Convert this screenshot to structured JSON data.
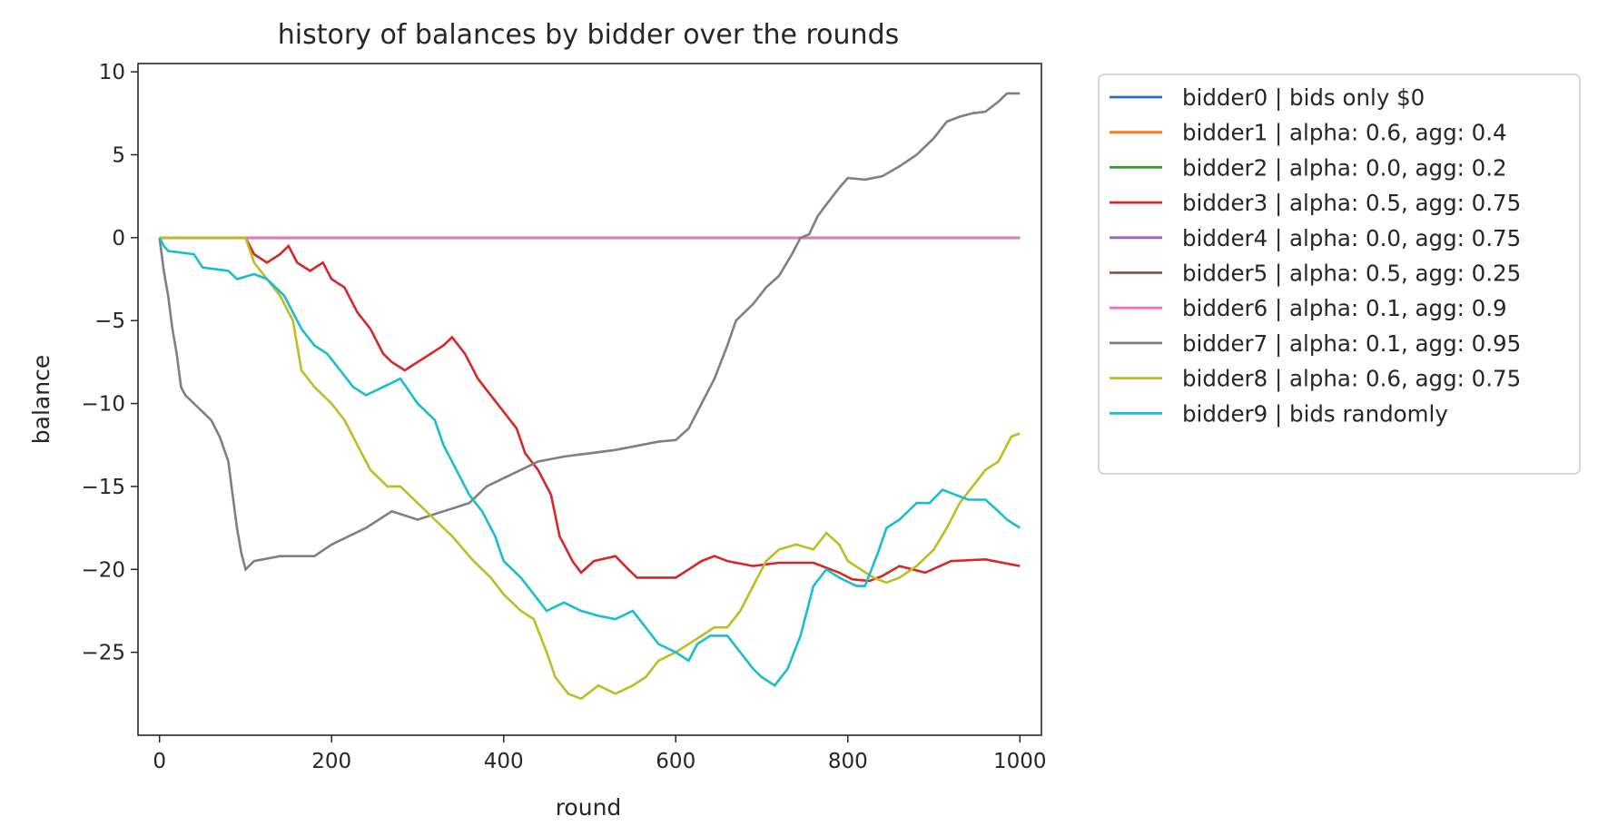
{
  "chart_data": {
    "type": "line",
    "title": "history of balances by bidder over the rounds",
    "xlabel": "round",
    "ylabel": "balance",
    "xlim": [
      -25,
      1025
    ],
    "ylim": [
      -30,
      10.5
    ],
    "x_ticks": [
      0,
      200,
      400,
      600,
      800,
      1000
    ],
    "x_tick_labels": [
      "0",
      "200",
      "400",
      "600",
      "800",
      "1000"
    ],
    "y_ticks": [
      10,
      5,
      0,
      -5,
      -10,
      -15,
      -20,
      -25
    ],
    "y_tick_labels": [
      "10",
      "5",
      "0",
      "−5",
      "−10",
      "−15",
      "−20",
      "−25"
    ],
    "grid": false,
    "legend_position": "outside-right",
    "series": [
      {
        "name": "bidder0 | bids only $0",
        "color": "#1f77b4",
        "points": [
          [
            0,
            0
          ],
          [
            1000,
            0
          ]
        ]
      },
      {
        "name": "bidder1 | alpha: 0.6, agg: 0.4",
        "color": "#ff7f0e",
        "points": [
          [
            0,
            0
          ],
          [
            1000,
            0
          ]
        ]
      },
      {
        "name": "bidder2 | alpha: 0.0, agg: 0.2",
        "color": "#2ca02c",
        "points": [
          [
            0,
            0
          ],
          [
            1000,
            0
          ]
        ]
      },
      {
        "name": "bidder3 | alpha: 0.5, agg: 0.75",
        "color": "#d62728",
        "points": [
          [
            0,
            0
          ],
          [
            100,
            0
          ],
          [
            110,
            -1
          ],
          [
            125,
            -1.5
          ],
          [
            140,
            -1
          ],
          [
            150,
            -0.5
          ],
          [
            160,
            -1.5
          ],
          [
            175,
            -2
          ],
          [
            190,
            -1.5
          ],
          [
            200,
            -2.5
          ],
          [
            215,
            -3
          ],
          [
            230,
            -4.5
          ],
          [
            245,
            -5.5
          ],
          [
            260,
            -7
          ],
          [
            270,
            -7.5
          ],
          [
            285,
            -8
          ],
          [
            300,
            -7.5
          ],
          [
            315,
            -7
          ],
          [
            330,
            -6.5
          ],
          [
            340,
            -6
          ],
          [
            355,
            -7
          ],
          [
            370,
            -8.5
          ],
          [
            385,
            -9.5
          ],
          [
            400,
            -10.5
          ],
          [
            415,
            -11.5
          ],
          [
            425,
            -13
          ],
          [
            440,
            -14
          ],
          [
            455,
            -15.5
          ],
          [
            465,
            -18
          ],
          [
            480,
            -19.5
          ],
          [
            490,
            -20.2
          ],
          [
            505,
            -19.5
          ],
          [
            530,
            -19.2
          ],
          [
            545,
            -20
          ],
          [
            555,
            -20.5
          ],
          [
            600,
            -20.5
          ],
          [
            615,
            -20
          ],
          [
            630,
            -19.5
          ],
          [
            645,
            -19.2
          ],
          [
            660,
            -19.5
          ],
          [
            690,
            -19.8
          ],
          [
            720,
            -19.6
          ],
          [
            760,
            -19.6
          ],
          [
            790,
            -20.2
          ],
          [
            805,
            -20.6
          ],
          [
            825,
            -20.7
          ],
          [
            840,
            -20.4
          ],
          [
            860,
            -19.8
          ],
          [
            890,
            -20.2
          ],
          [
            920,
            -19.5
          ],
          [
            960,
            -19.4
          ],
          [
            1000,
            -19.8
          ]
        ]
      },
      {
        "name": "bidder4 | alpha: 0.0, agg: 0.75",
        "color": "#9467bd",
        "points": [
          [
            0,
            0
          ],
          [
            1000,
            0
          ]
        ]
      },
      {
        "name": "bidder5 | alpha: 0.5, agg: 0.25",
        "color": "#8c564b",
        "points": [
          [
            0,
            0
          ],
          [
            1000,
            0
          ]
        ]
      },
      {
        "name": "bidder6 | alpha: 0.1, agg: 0.9",
        "color": "#e377c2",
        "points": [
          [
            0,
            0
          ],
          [
            1000,
            0
          ]
        ]
      },
      {
        "name": "bidder7 | alpha: 0.1, agg: 0.95",
        "color": "#7f7f7f",
        "points": [
          [
            0,
            0
          ],
          [
            5,
            -2
          ],
          [
            10,
            -3.5
          ],
          [
            15,
            -5.5
          ],
          [
            20,
            -7
          ],
          [
            25,
            -9
          ],
          [
            30,
            -9.5
          ],
          [
            40,
            -10
          ],
          [
            50,
            -10.5
          ],
          [
            60,
            -11
          ],
          [
            70,
            -12
          ],
          [
            80,
            -13.5
          ],
          [
            85,
            -15.5
          ],
          [
            90,
            -17.5
          ],
          [
            95,
            -19
          ],
          [
            100,
            -20
          ],
          [
            110,
            -19.5
          ],
          [
            140,
            -19.2
          ],
          [
            180,
            -19.2
          ],
          [
            200,
            -18.5
          ],
          [
            220,
            -18
          ],
          [
            240,
            -17.5
          ],
          [
            270,
            -16.5
          ],
          [
            300,
            -17
          ],
          [
            330,
            -16.5
          ],
          [
            360,
            -16
          ],
          [
            380,
            -15
          ],
          [
            400,
            -14.5
          ],
          [
            420,
            -14
          ],
          [
            440,
            -13.5
          ],
          [
            470,
            -13.2
          ],
          [
            500,
            -13
          ],
          [
            530,
            -12.8
          ],
          [
            560,
            -12.5
          ],
          [
            580,
            -12.3
          ],
          [
            600,
            -12.2
          ],
          [
            615,
            -11.5
          ],
          [
            630,
            -10
          ],
          [
            645,
            -8.5
          ],
          [
            660,
            -6.5
          ],
          [
            670,
            -5
          ],
          [
            690,
            -4
          ],
          [
            705,
            -3
          ],
          [
            720,
            -2.3
          ],
          [
            735,
            -1
          ],
          [
            745,
            0
          ],
          [
            755,
            0.2
          ],
          [
            765,
            1.3
          ],
          [
            775,
            2
          ],
          [
            790,
            3
          ],
          [
            800,
            3.6
          ],
          [
            820,
            3.5
          ],
          [
            840,
            3.7
          ],
          [
            860,
            4.3
          ],
          [
            880,
            5
          ],
          [
            900,
            6
          ],
          [
            915,
            7
          ],
          [
            930,
            7.3
          ],
          [
            945,
            7.5
          ],
          [
            960,
            7.6
          ],
          [
            975,
            8.2
          ],
          [
            985,
            8.7
          ],
          [
            1000,
            8.7
          ]
        ]
      },
      {
        "name": "bidder8 | alpha: 0.6, agg: 0.75",
        "color": "#bcbd22",
        "points": [
          [
            0,
            0
          ],
          [
            100,
            0
          ],
          [
            110,
            -1.5
          ],
          [
            125,
            -2.5
          ],
          [
            140,
            -3.5
          ],
          [
            155,
            -5
          ],
          [
            165,
            -8
          ],
          [
            180,
            -9
          ],
          [
            200,
            -10
          ],
          [
            215,
            -11
          ],
          [
            230,
            -12.5
          ],
          [
            245,
            -14
          ],
          [
            265,
            -15
          ],
          [
            280,
            -15
          ],
          [
            300,
            -16
          ],
          [
            320,
            -17
          ],
          [
            340,
            -18
          ],
          [
            365,
            -19.5
          ],
          [
            385,
            -20.5
          ],
          [
            400,
            -21.5
          ],
          [
            420,
            -22.5
          ],
          [
            435,
            -23
          ],
          [
            450,
            -25
          ],
          [
            460,
            -26.5
          ],
          [
            475,
            -27.5
          ],
          [
            490,
            -27.8
          ],
          [
            510,
            -27
          ],
          [
            530,
            -27.5
          ],
          [
            550,
            -27
          ],
          [
            565,
            -26.5
          ],
          [
            580,
            -25.5
          ],
          [
            600,
            -25
          ],
          [
            615,
            -24.5
          ],
          [
            630,
            -24
          ],
          [
            645,
            -23.5
          ],
          [
            660,
            -23.5
          ],
          [
            675,
            -22.5
          ],
          [
            690,
            -21
          ],
          [
            705,
            -19.5
          ],
          [
            720,
            -18.8
          ],
          [
            740,
            -18.5
          ],
          [
            760,
            -18.8
          ],
          [
            775,
            -17.8
          ],
          [
            790,
            -18.5
          ],
          [
            800,
            -19.5
          ],
          [
            815,
            -20
          ],
          [
            830,
            -20.5
          ],
          [
            845,
            -20.8
          ],
          [
            860,
            -20.5
          ],
          [
            880,
            -19.8
          ],
          [
            900,
            -18.8
          ],
          [
            915,
            -17.5
          ],
          [
            930,
            -16
          ],
          [
            945,
            -15
          ],
          [
            960,
            -14
          ],
          [
            975,
            -13.5
          ],
          [
            990,
            -12
          ],
          [
            1000,
            -11.8
          ]
        ]
      },
      {
        "name": "bidder9 | bids randomly",
        "color": "#17becf",
        "points": [
          [
            0,
            0
          ],
          [
            5,
            -0.5
          ],
          [
            10,
            -0.8
          ],
          [
            40,
            -1
          ],
          [
            50,
            -1.8
          ],
          [
            80,
            -2
          ],
          [
            90,
            -2.5
          ],
          [
            110,
            -2.2
          ],
          [
            125,
            -2.5
          ],
          [
            135,
            -3
          ],
          [
            145,
            -3.5
          ],
          [
            155,
            -4.5
          ],
          [
            165,
            -5.5
          ],
          [
            180,
            -6.5
          ],
          [
            195,
            -7
          ],
          [
            210,
            -8
          ],
          [
            225,
            -9
          ],
          [
            240,
            -9.5
          ],
          [
            260,
            -9
          ],
          [
            280,
            -8.5
          ],
          [
            300,
            -10
          ],
          [
            320,
            -11
          ],
          [
            330,
            -12.5
          ],
          [
            345,
            -14
          ],
          [
            360,
            -15.5
          ],
          [
            375,
            -16.5
          ],
          [
            390,
            -18
          ],
          [
            400,
            -19.5
          ],
          [
            420,
            -20.5
          ],
          [
            435,
            -21.5
          ],
          [
            450,
            -22.5
          ],
          [
            470,
            -22
          ],
          [
            490,
            -22.5
          ],
          [
            510,
            -22.8
          ],
          [
            530,
            -23
          ],
          [
            550,
            -22.5
          ],
          [
            565,
            -23.5
          ],
          [
            580,
            -24.5
          ],
          [
            600,
            -25
          ],
          [
            615,
            -25.5
          ],
          [
            625,
            -24.5
          ],
          [
            640,
            -24
          ],
          [
            660,
            -24
          ],
          [
            675,
            -25
          ],
          [
            690,
            -26
          ],
          [
            700,
            -26.5
          ],
          [
            715,
            -27
          ],
          [
            730,
            -26
          ],
          [
            745,
            -24
          ],
          [
            760,
            -21
          ],
          [
            775,
            -20
          ],
          [
            790,
            -20.5
          ],
          [
            810,
            -21
          ],
          [
            820,
            -21
          ],
          [
            835,
            -19
          ],
          [
            845,
            -17.5
          ],
          [
            860,
            -17
          ],
          [
            880,
            -16
          ],
          [
            895,
            -16
          ],
          [
            910,
            -15.2
          ],
          [
            925,
            -15.5
          ],
          [
            940,
            -15.8
          ],
          [
            960,
            -15.8
          ],
          [
            975,
            -16.5
          ],
          [
            985,
            -17
          ],
          [
            1000,
            -17.5
          ]
        ]
      }
    ]
  }
}
